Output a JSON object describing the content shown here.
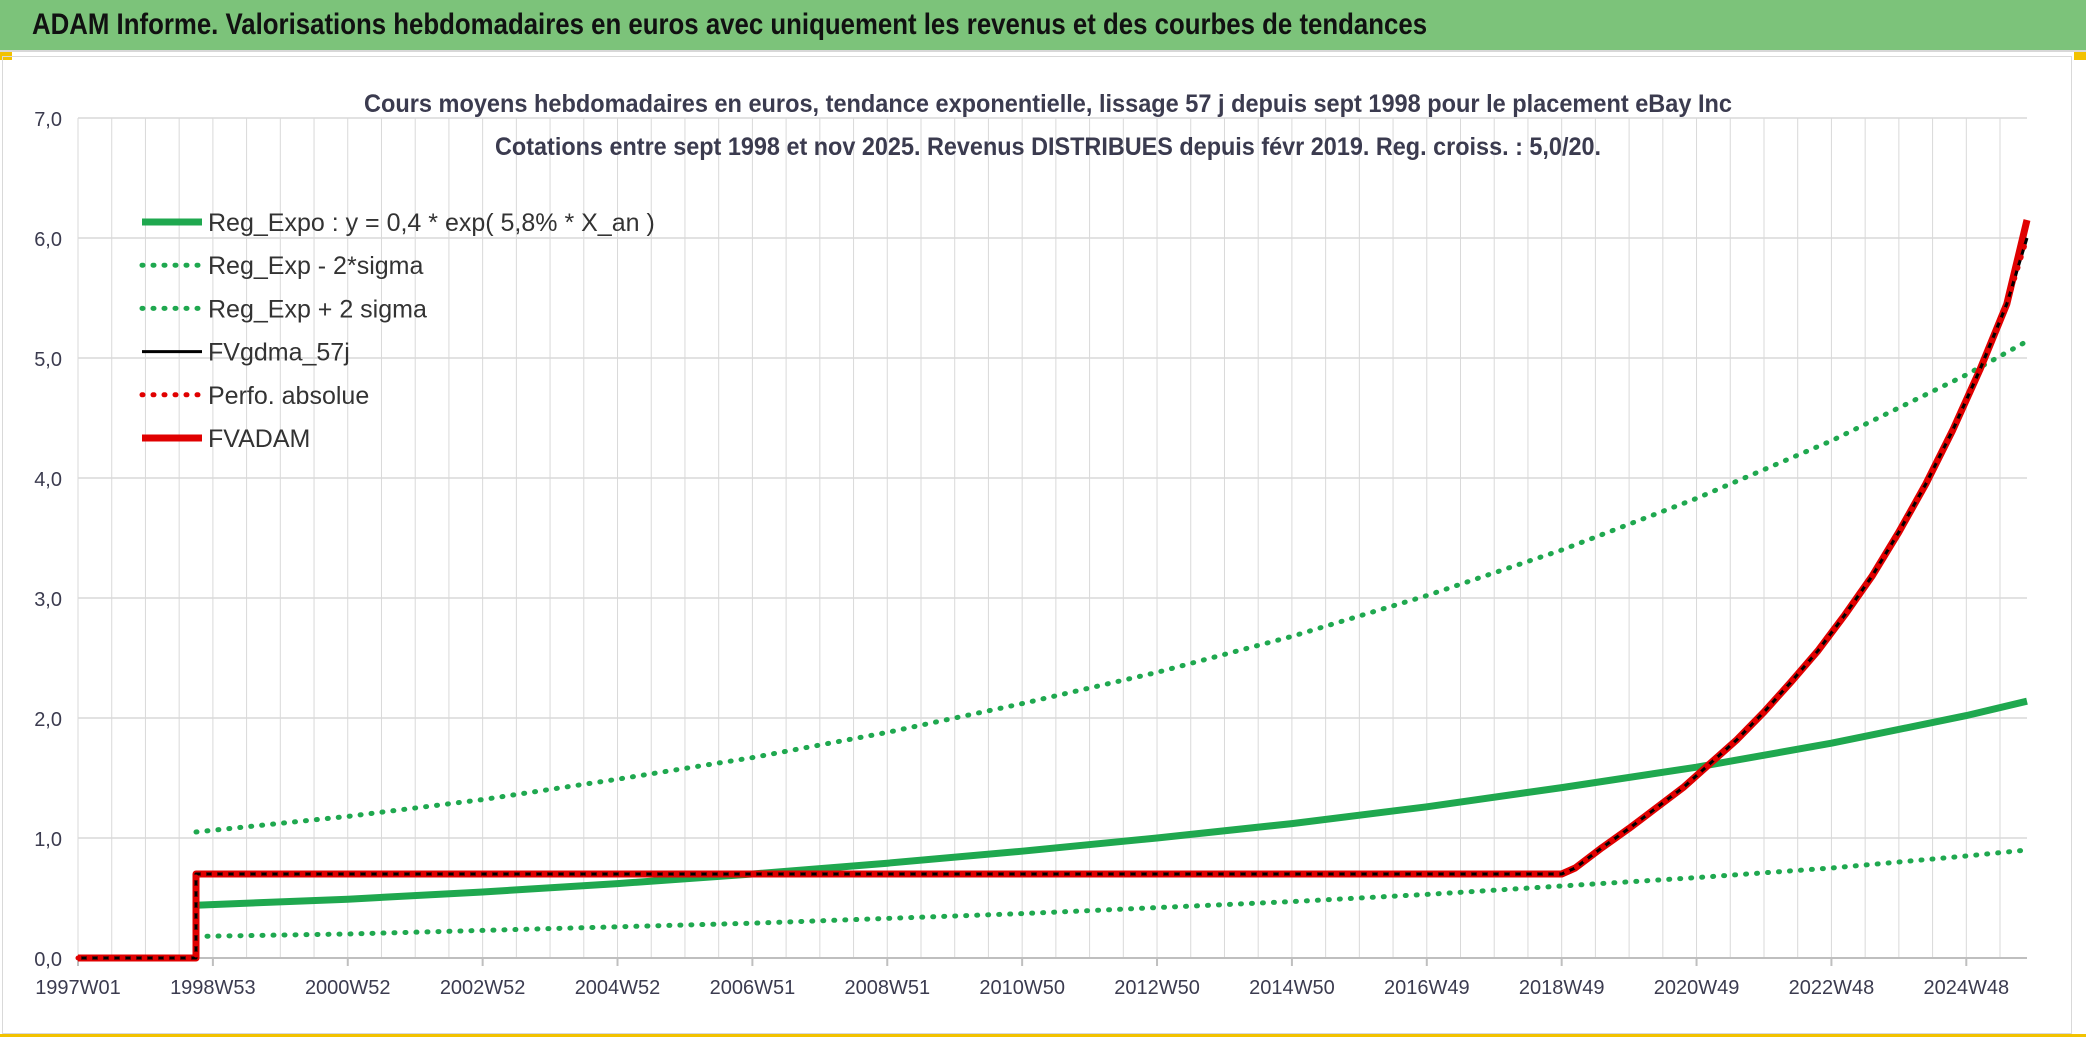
{
  "header": {
    "title": "ADAM Informe. Valorisations hebdomadaires en euros avec uniquement les revenus et des courbes de tendances"
  },
  "colors": {
    "header_bg": "#7cc37a",
    "green": "#1fa84f",
    "black": "#000000",
    "red": "#e00000",
    "grid": "#d9d9d9",
    "text": "#3b3b4f"
  },
  "chart_data": {
    "type": "line",
    "title": "Cours moyens hebdomadaires en euros, tendance exponentielle, lissage 57 j depuis sept 1998 pour le placement eBay Inc",
    "subtitle": "Cotations entre sept 1998 et nov 2025. Revenus DISTRIBUES depuis févr 2019. Reg. croiss. : 5,0/20.",
    "xlabel": "",
    "ylabel": "",
    "ylim": [
      0,
      7
    ],
    "yticks": [
      "0,0",
      "1,0",
      "2,0",
      "3,0",
      "4,0",
      "5,0",
      "6,0",
      "7,0"
    ],
    "xlim": [
      1997.0,
      2025.9
    ],
    "xticks": [
      {
        "label": "1997W01",
        "x": 1997.0
      },
      {
        "label": "1998W53",
        "x": 1999.0
      },
      {
        "label": "2000W52",
        "x": 2001.0
      },
      {
        "label": "2002W52",
        "x": 2003.0
      },
      {
        "label": "2004W52",
        "x": 2005.0
      },
      {
        "label": "2006W51",
        "x": 2007.0
      },
      {
        "label": "2008W51",
        "x": 2009.0
      },
      {
        "label": "2010W50",
        "x": 2011.0
      },
      {
        "label": "2012W50",
        "x": 2013.0
      },
      {
        "label": "2014W50",
        "x": 2015.0
      },
      {
        "label": "2016W49",
        "x": 2017.0
      },
      {
        "label": "2018W49",
        "x": 2019.0
      },
      {
        "label": "2020W49",
        "x": 2021.0
      },
      {
        "label": "2022W48",
        "x": 2023.0
      },
      {
        "label": "2024W48",
        "x": 2025.0
      }
    ],
    "grid": true,
    "legend_position": "top-left",
    "series": [
      {
        "name": "Reg_Expo : y = 0,4 * exp( 5,8% *  X_an )",
        "style": "solid-thick",
        "color": "#1fa84f",
        "x": [
          1998.75,
          2001,
          2003,
          2005,
          2007,
          2009,
          2011,
          2013,
          2015,
          2017,
          2019,
          2021,
          2023,
          2025,
          2025.9
        ],
        "y": [
          0.44,
          0.49,
          0.55,
          0.62,
          0.7,
          0.79,
          0.89,
          1.0,
          1.12,
          1.26,
          1.42,
          1.59,
          1.79,
          2.02,
          2.14
        ]
      },
      {
        "name": "Reg_Exp - 2*sigma",
        "style": "dotted",
        "color": "#1fa84f",
        "x": [
          1998.75,
          2001,
          2003,
          2005,
          2007,
          2009,
          2011,
          2013,
          2015,
          2017,
          2019,
          2021,
          2023,
          2025,
          2025.9
        ],
        "y": [
          0.18,
          0.2,
          0.23,
          0.26,
          0.29,
          0.33,
          0.37,
          0.42,
          0.47,
          0.53,
          0.6,
          0.67,
          0.75,
          0.85,
          0.9
        ]
      },
      {
        "name": "Reg_Exp + 2 sigma",
        "style": "dotted",
        "color": "#1fa84f",
        "x": [
          1998.75,
          2001,
          2003,
          2005,
          2007,
          2009,
          2011,
          2013,
          2015,
          2017,
          2019,
          2021,
          2023,
          2025,
          2025.9
        ],
        "y": [
          1.05,
          1.18,
          1.32,
          1.49,
          1.67,
          1.88,
          2.12,
          2.38,
          2.68,
          3.02,
          3.4,
          3.83,
          4.31,
          4.86,
          5.14
        ]
      },
      {
        "name": "FVgdma_57j",
        "style": "solid",
        "color": "#000000",
        "x": [
          1997.0,
          1998.75,
          1998.75,
          2019.0,
          2019.2,
          2019.6,
          2020.0,
          2020.4,
          2020.8,
          2021.2,
          2021.6,
          2022.0,
          2022.4,
          2022.8,
          2023.2,
          2023.6,
          2024.0,
          2024.4,
          2024.8,
          2025.2,
          2025.6,
          2025.9
        ],
        "y": [
          0.0,
          0.0,
          0.7,
          0.7,
          0.75,
          0.92,
          1.08,
          1.25,
          1.42,
          1.62,
          1.82,
          2.05,
          2.3,
          2.56,
          2.86,
          3.18,
          3.55,
          3.95,
          4.4,
          4.9,
          5.45,
          6.0
        ]
      },
      {
        "name": "Perfo. absolue",
        "style": "dotted",
        "color": "#e00000",
        "x": [
          1997.0,
          1998.75,
          1998.75,
          2019.0,
          2019.2,
          2019.6,
          2020.0,
          2020.4,
          2020.8,
          2021.2,
          2021.6,
          2022.0,
          2022.4,
          2022.8,
          2023.2,
          2023.6,
          2024.0,
          2024.4,
          2024.8,
          2025.2,
          2025.6,
          2025.9
        ],
        "y": [
          0.0,
          0.0,
          0.7,
          0.7,
          0.75,
          0.92,
          1.08,
          1.25,
          1.42,
          1.62,
          1.82,
          2.05,
          2.3,
          2.56,
          2.86,
          3.18,
          3.55,
          3.95,
          4.4,
          4.9,
          5.45,
          6.0
        ]
      },
      {
        "name": "FVADAM",
        "style": "solid-thick",
        "color": "#e00000",
        "x": [
          1997.0,
          1998.75,
          1998.75,
          2019.0,
          2019.2,
          2019.6,
          2020.0,
          2020.4,
          2020.8,
          2021.2,
          2021.6,
          2022.0,
          2022.4,
          2022.8,
          2023.2,
          2023.6,
          2024.0,
          2024.4,
          2024.8,
          2025.2,
          2025.6,
          2025.9
        ],
        "y": [
          0.0,
          0.0,
          0.7,
          0.7,
          0.75,
          0.92,
          1.08,
          1.25,
          1.42,
          1.62,
          1.82,
          2.05,
          2.3,
          2.56,
          2.86,
          3.18,
          3.55,
          3.95,
          4.4,
          4.9,
          5.45,
          6.15
        ]
      }
    ]
  }
}
